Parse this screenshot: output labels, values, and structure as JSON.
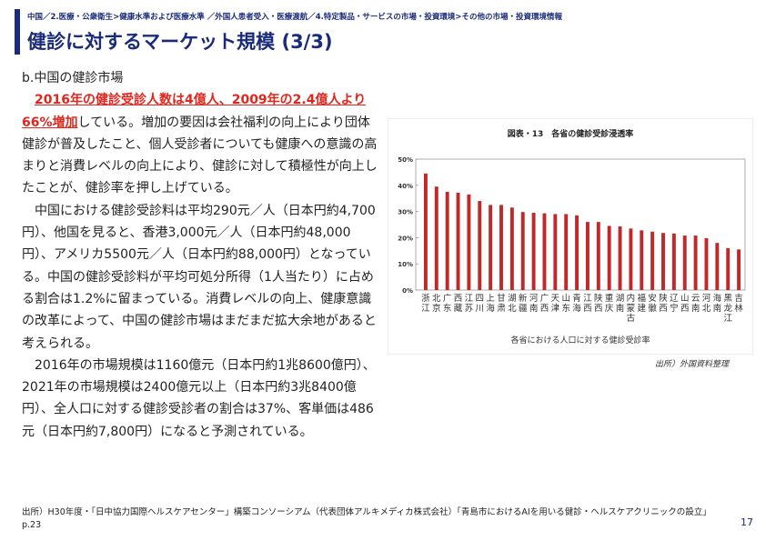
{
  "header": {
    "breadcrumb": "中国／2.医療・公衆衛生>健康水準および医療水準 ／外国人患者受入・医療渡航／4.特定製品・サービスの市場・投資環境>その他の市場・投資環境情報",
    "title": "健診に対するマーケット規模 (3/3)",
    "accent_color": "#1a2b7a"
  },
  "body": {
    "subheading": "b.中国の健診市場",
    "para1_highlight": "2016年の健診受診人数は4億人、2009年の2.4億人より66%増加",
    "para1_rest": "している。増加の要因は会社福利の向上により団体健診が普及したこと、個人受診者についても健康への意識の高まりと消費レベルの向上により、健診に対して積極性が向上したことが、健診率を押し上げている。",
    "para2": "中国における健診受診料は平均290元／人（日本円約4,700円）、他国を見ると、香港3,000元／人（日本円約48,000円）、アメリカ5500元／人（日本円約88,000円）となっている。中国の健診受診料が平均可処分所得（1人当たり）に占める割合は1.2%に留まっている。消費レベルの向上、健康意識の改革によって、中国の健診市場はまだまだ拡大余地があると考えられる。",
    "para3": "2016年の市場規模は1160億元（日本円約1兆8600億円）、2021年の市場規模は2400億元以上（日本円約3兆8400億円）、全人口に対する健診受診者の割合は37%、客単価は486元（日本円約7,800円）になると予測されている。",
    "highlight_color": "#e0261d"
  },
  "figure": {
    "source": "出所）外国資料整理"
  },
  "chart_data": {
    "type": "bar",
    "title": "図表・13　各省の健診受診浸透率",
    "xlabel": "各省における人口に対する健診受診率",
    "ylabel": "",
    "ylim": [
      0,
      50
    ],
    "y_ticks": [
      "0%",
      "10%",
      "20%",
      "30%",
      "40%",
      "50%"
    ],
    "bar_color": "#c0282a",
    "categories": [
      "浙江",
      "北京",
      "广东",
      "西藏",
      "江苏",
      "四川",
      "上海",
      "甘肃",
      "湖北",
      "新疆",
      "河南",
      "广西",
      "天津",
      "山东",
      "青海",
      "江西",
      "陕西",
      "重庆",
      "湖南",
      "内蒙古",
      "福建",
      "安徽",
      "陕西",
      "辽宁",
      "山西",
      "云南",
      "河北",
      "海南",
      "黑龙江",
      "吉林"
    ],
    "values": [
      44.5,
      39.5,
      37.5,
      37.2,
      36.5,
      34,
      32.5,
      32.5,
      31.5,
      29.8,
      29.5,
      29.3,
      29,
      29,
      28.5,
      26,
      26,
      24.5,
      24.3,
      23.5,
      22.8,
      22.3,
      21.8,
      21.6,
      20.8,
      20.8,
      19.8,
      18,
      16,
      15.5
    ]
  },
  "footer": {
    "source": "出所）H30年度・「日中協力国際ヘルスケアセンター」構築コンソーシアム（代表団体アルキメディカ株式会社）「青島市におけるAIを用いる健診・ヘルスケアクリニックの設立」p.23",
    "page_number": "17"
  }
}
